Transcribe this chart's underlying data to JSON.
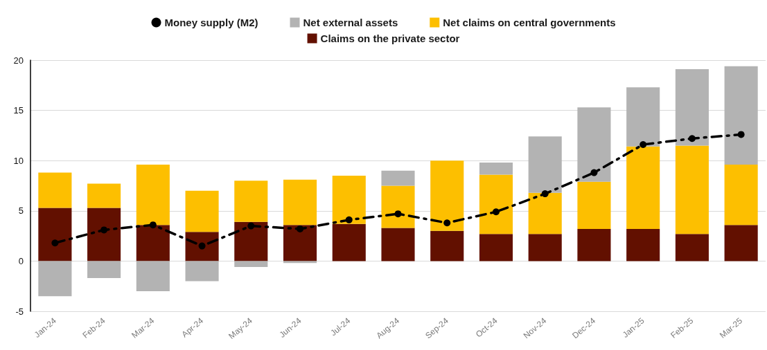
{
  "chart_data": {
    "type": "bar",
    "stacked": true,
    "legend": "top",
    "grid": "y",
    "marker": "circle",
    "line_style": "dashed",
    "categories": [
      "Jan-24",
      "Feb-24",
      "Mar-24",
      "Apr-24",
      "May-24",
      "Jun-24",
      "Jul-24",
      "Aug-24",
      "Sep-24",
      "Oct-24",
      "Nov-24",
      "Dec-24",
      "Jan-25",
      "Feb-25",
      "Mar-25"
    ],
    "ylim": [
      -5,
      20
    ],
    "yticks": [
      -5,
      0,
      5,
      10,
      15,
      20
    ],
    "series": [
      {
        "name": "Money supply (M2)",
        "type": "line",
        "color": "#000000",
        "values": [
          1.8,
          3.1,
          3.6,
          1.5,
          3.5,
          3.2,
          4.1,
          4.7,
          3.8,
          4.9,
          6.7,
          8.8,
          11.6,
          12.2,
          12.6
        ]
      },
      {
        "name": "Claims on the private sector",
        "color": "#621000",
        "values": [
          5.3,
          5.3,
          3.6,
          2.9,
          3.9,
          3.6,
          3.7,
          3.3,
          3.0,
          2.7,
          2.7,
          3.2,
          3.2,
          2.7,
          3.6
        ]
      },
      {
        "name": "Net claims on central governments",
        "color": "#fdbf00",
        "values": [
          3.5,
          2.4,
          6.0,
          4.1,
          4.1,
          4.5,
          4.8,
          4.2,
          7.0,
          5.9,
          4.1,
          4.7,
          8.2,
          8.8,
          6.0
        ]
      },
      {
        "name": "Net external assets",
        "color": "#b3b3b3",
        "values": [
          -3.5,
          -1.7,
          -3.0,
          -2.0,
          -0.6,
          -0.2,
          null,
          1.5,
          null,
          1.2,
          5.6,
          7.4,
          5.9,
          7.6,
          9.8
        ]
      }
    ]
  }
}
